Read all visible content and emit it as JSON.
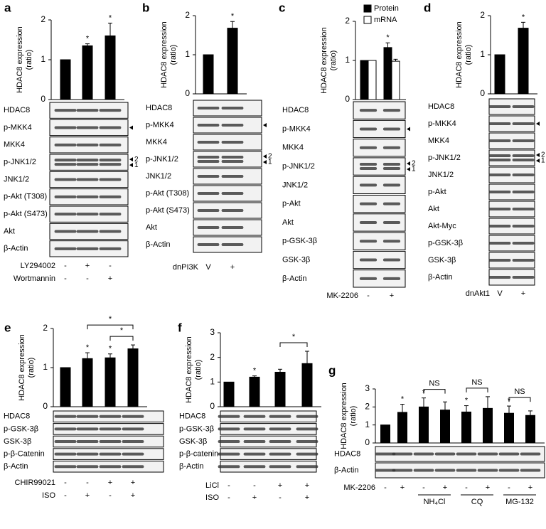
{
  "chart_data": [
    {
      "type": "bar",
      "panel": "a",
      "ylabel": [
        "HDAC8 expression",
        "(ratio)"
      ],
      "ylim": [
        0,
        2
      ],
      "yticks": [
        0,
        1,
        2
      ],
      "color": "#000000",
      "values": [
        1,
        1.35,
        1.6
      ],
      "errors": [
        0,
        0.05,
        0.32
      ],
      "stars": [
        null,
        "*",
        "*"
      ],
      "blots": [
        "HDAC8",
        "p-MKK4",
        "MKK4",
        "p-JNK1/2",
        "JNK1/2",
        "p-Akt (T308)",
        "p-Akt (S473)",
        "Akt",
        "β-Actin"
      ],
      "band_markers": [
        "2",
        "1"
      ],
      "conditions": [
        {
          "name": "LY294002",
          "values": [
            "-",
            "+",
            "-"
          ]
        },
        {
          "name": "Wortmannin",
          "values": [
            "-",
            "-",
            "+"
          ]
        }
      ]
    },
    {
      "type": "bar",
      "panel": "b",
      "ylabel": [
        "HDAC8 expression",
        "(ratio)"
      ],
      "ylim": [
        0,
        2
      ],
      "yticks": [
        0,
        1,
        2
      ],
      "color": "#000000",
      "values": [
        1,
        1.68
      ],
      "errors": [
        0,
        0.17
      ],
      "stars": [
        null,
        "*"
      ],
      "blots": [
        "HDAC8",
        "p-MKK4",
        "MKK4",
        "p-JNK1/2",
        "JNK1/2",
        "p-Akt (T308)",
        "p-Akt (S473)",
        "Akt",
        "β-Actin"
      ],
      "band_markers": [
        "2",
        "1"
      ],
      "conditions": [
        {
          "name": "dnPI3K",
          "values": [
            "V",
            "+"
          ]
        }
      ]
    },
    {
      "type": "bar",
      "panel": "c",
      "ylabel": [
        "HDAC8 expression",
        "(ratio)"
      ],
      "ylim": [
        0,
        2
      ],
      "yticks": [
        0,
        1,
        2
      ],
      "series": [
        {
          "name": "Protein",
          "color": "#000000",
          "values": [
            1,
            1.33
          ],
          "errors": [
            0,
            0.12
          ],
          "stars": [
            null,
            "*"
          ]
        },
        {
          "name": "mRNA",
          "color": "#ffffff",
          "values": [
            1,
            0.98
          ],
          "errors": [
            0,
            0.05
          ]
        }
      ],
      "blots": [
        "HDAC8",
        "p-MKK4",
        "MKK4",
        "p-JNK1/2",
        "JNK1/2",
        "p-Akt",
        "Akt",
        "p-GSK-3β",
        "GSK-3β",
        "β-Actin"
      ],
      "band_markers": [
        "2",
        "1"
      ],
      "conditions": [
        {
          "name": "MK-2206",
          "values": [
            "-",
            "+"
          ]
        }
      ]
    },
    {
      "type": "bar",
      "panel": "d",
      "ylabel": [
        "HDAC8 expression",
        "(ratio)"
      ],
      "ylim": [
        0,
        2
      ],
      "yticks": [
        0,
        1,
        2
      ],
      "color": "#000000",
      "values": [
        1,
        1.68
      ],
      "errors": [
        0,
        0.15
      ],
      "stars": [
        null,
        "*"
      ],
      "blots": [
        "HDAC8",
        "p-MKK4",
        "MKK4",
        "p-JNK1/2",
        "JNK1/2",
        "p-Akt",
        "Akt",
        "Akt-Myc",
        "p-GSK-3β",
        "GSK-3β",
        "β-Actin"
      ],
      "band_markers": [
        "2",
        "1"
      ],
      "conditions": [
        {
          "name": "dnAkt1",
          "values": [
            "V",
            "+"
          ]
        }
      ]
    },
    {
      "type": "bar",
      "panel": "e",
      "ylabel": [
        "HDAC8 expression",
        "(ratio)"
      ],
      "ylim": [
        0,
        2
      ],
      "yticks": [
        0,
        1,
        2
      ],
      "color": "#000000",
      "values": [
        1,
        1.23,
        1.25,
        1.48
      ],
      "errors": [
        0,
        0.15,
        0.1,
        0.1
      ],
      "stars": [
        null,
        "*",
        "*",
        null
      ],
      "brackets": [
        {
          "from": 2,
          "to": 3,
          "text": "*"
        },
        {
          "from": 1,
          "to": 3,
          "text": "*"
        }
      ],
      "blots": [
        "HDAC8",
        "p-GSK-3β",
        "GSK-3β",
        "p-β-Catenin",
        "β-Actin"
      ],
      "conditions": [
        {
          "name": "CHIR99021",
          "values": [
            "-",
            "-",
            "+",
            "+"
          ]
        },
        {
          "name": "ISO",
          "values": [
            "-",
            "+",
            "-",
            "+"
          ]
        }
      ]
    },
    {
      "type": "bar",
      "panel": "f",
      "ylabel": [
        "HDAC8 expression",
        "(ratio)"
      ],
      "ylim": [
        0,
        3
      ],
      "yticks": [
        0,
        1,
        2,
        3
      ],
      "color": "#000000",
      "values": [
        1,
        1.2,
        1.4,
        1.75
      ],
      "errors": [
        0,
        0.05,
        0.12,
        0.5
      ],
      "stars": [
        null,
        "*",
        null,
        null
      ],
      "brackets": [
        {
          "from": 2,
          "to": 3,
          "text": "*"
        }
      ],
      "blots": [
        "HDAC8",
        "p-GSK-3β",
        "GSK-3β",
        "p-β-catenin",
        "β-Actin"
      ],
      "conditions": [
        {
          "name": "LiCl",
          "values": [
            "-",
            "-",
            "+",
            "+"
          ]
        },
        {
          "name": "ISO",
          "values": [
            "-",
            "+",
            "-",
            "+"
          ]
        }
      ]
    },
    {
      "type": "bar",
      "panel": "g",
      "ylabel": [
        "HDAC8 expression",
        "(ratio)"
      ],
      "ylim": [
        0,
        3
      ],
      "yticks": [
        0,
        1,
        2,
        3
      ],
      "color": "#000000",
      "values": [
        1,
        1.7,
        2.0,
        1.83,
        1.72,
        1.92,
        1.65,
        1.53
      ],
      "errors": [
        0,
        0.45,
        0.5,
        0.45,
        0.35,
        0.65,
        0.4,
        0.25
      ],
      "stars": [
        null,
        "*",
        "*",
        null,
        "*",
        null,
        "*",
        null
      ],
      "brackets": [
        {
          "from": 2,
          "to": 3,
          "text": "NS"
        },
        {
          "from": 4,
          "to": 5,
          "text": "NS"
        },
        {
          "from": 6,
          "to": 7,
          "text": "NS"
        }
      ],
      "blots": [
        "HDAC8",
        "β-Actin"
      ],
      "conditions": [
        {
          "name": "MK-2206",
          "values": [
            "-",
            "+",
            "-",
            "+",
            "-",
            "+",
            "-",
            "+"
          ]
        }
      ],
      "groups": [
        "NH₄Cl",
        "CQ",
        "MG-132"
      ]
    }
  ]
}
